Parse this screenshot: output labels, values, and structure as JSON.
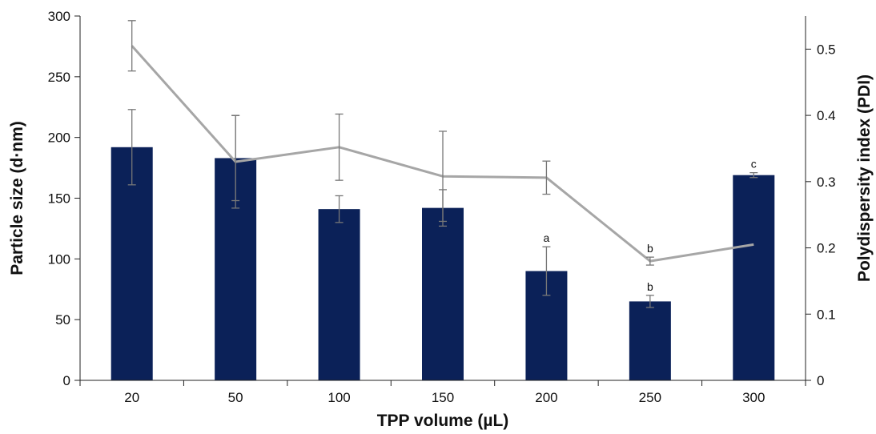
{
  "chart_data": {
    "type": "bar",
    "categories": [
      "20",
      "50",
      "100",
      "150",
      "200",
      "250",
      "300"
    ],
    "xlabel": "TPP volume (µL)",
    "ylabel": "Particle size (d·nm)",
    "y2label": "Polydispersity index (PDI)",
    "ylim": [
      0,
      300
    ],
    "y2lim": [
      0,
      0.55
    ],
    "yticks": [
      "0",
      "50",
      "100",
      "150",
      "200",
      "250",
      "300"
    ],
    "y2ticks": [
      "0",
      "0.1",
      "0.2",
      "0.3",
      "0.4",
      "0.5"
    ],
    "grid": false,
    "colors": {
      "bar": "#0b2158",
      "line": "#a6a6a6",
      "error_bar": "#777777"
    },
    "series": [
      {
        "type": "bar",
        "axis": "left",
        "values": [
          192,
          183,
          141,
          142,
          90,
          65,
          169
        ],
        "errors": [
          31,
          35,
          11,
          15,
          20,
          5,
          2
        ],
        "annotations": [
          "",
          "",
          "",
          "",
          "a",
          "b",
          "c"
        ]
      },
      {
        "type": "line",
        "axis": "right",
        "values": [
          0.505,
          0.33,
          0.352,
          0.308,
          0.306,
          0.18,
          0.205
        ],
        "errors": [
          0.038,
          0.07,
          0.05,
          0.068,
          0.025,
          0.006,
          null
        ],
        "annotations": [
          "",
          "",
          "",
          "",
          "",
          "b",
          ""
        ]
      }
    ]
  }
}
